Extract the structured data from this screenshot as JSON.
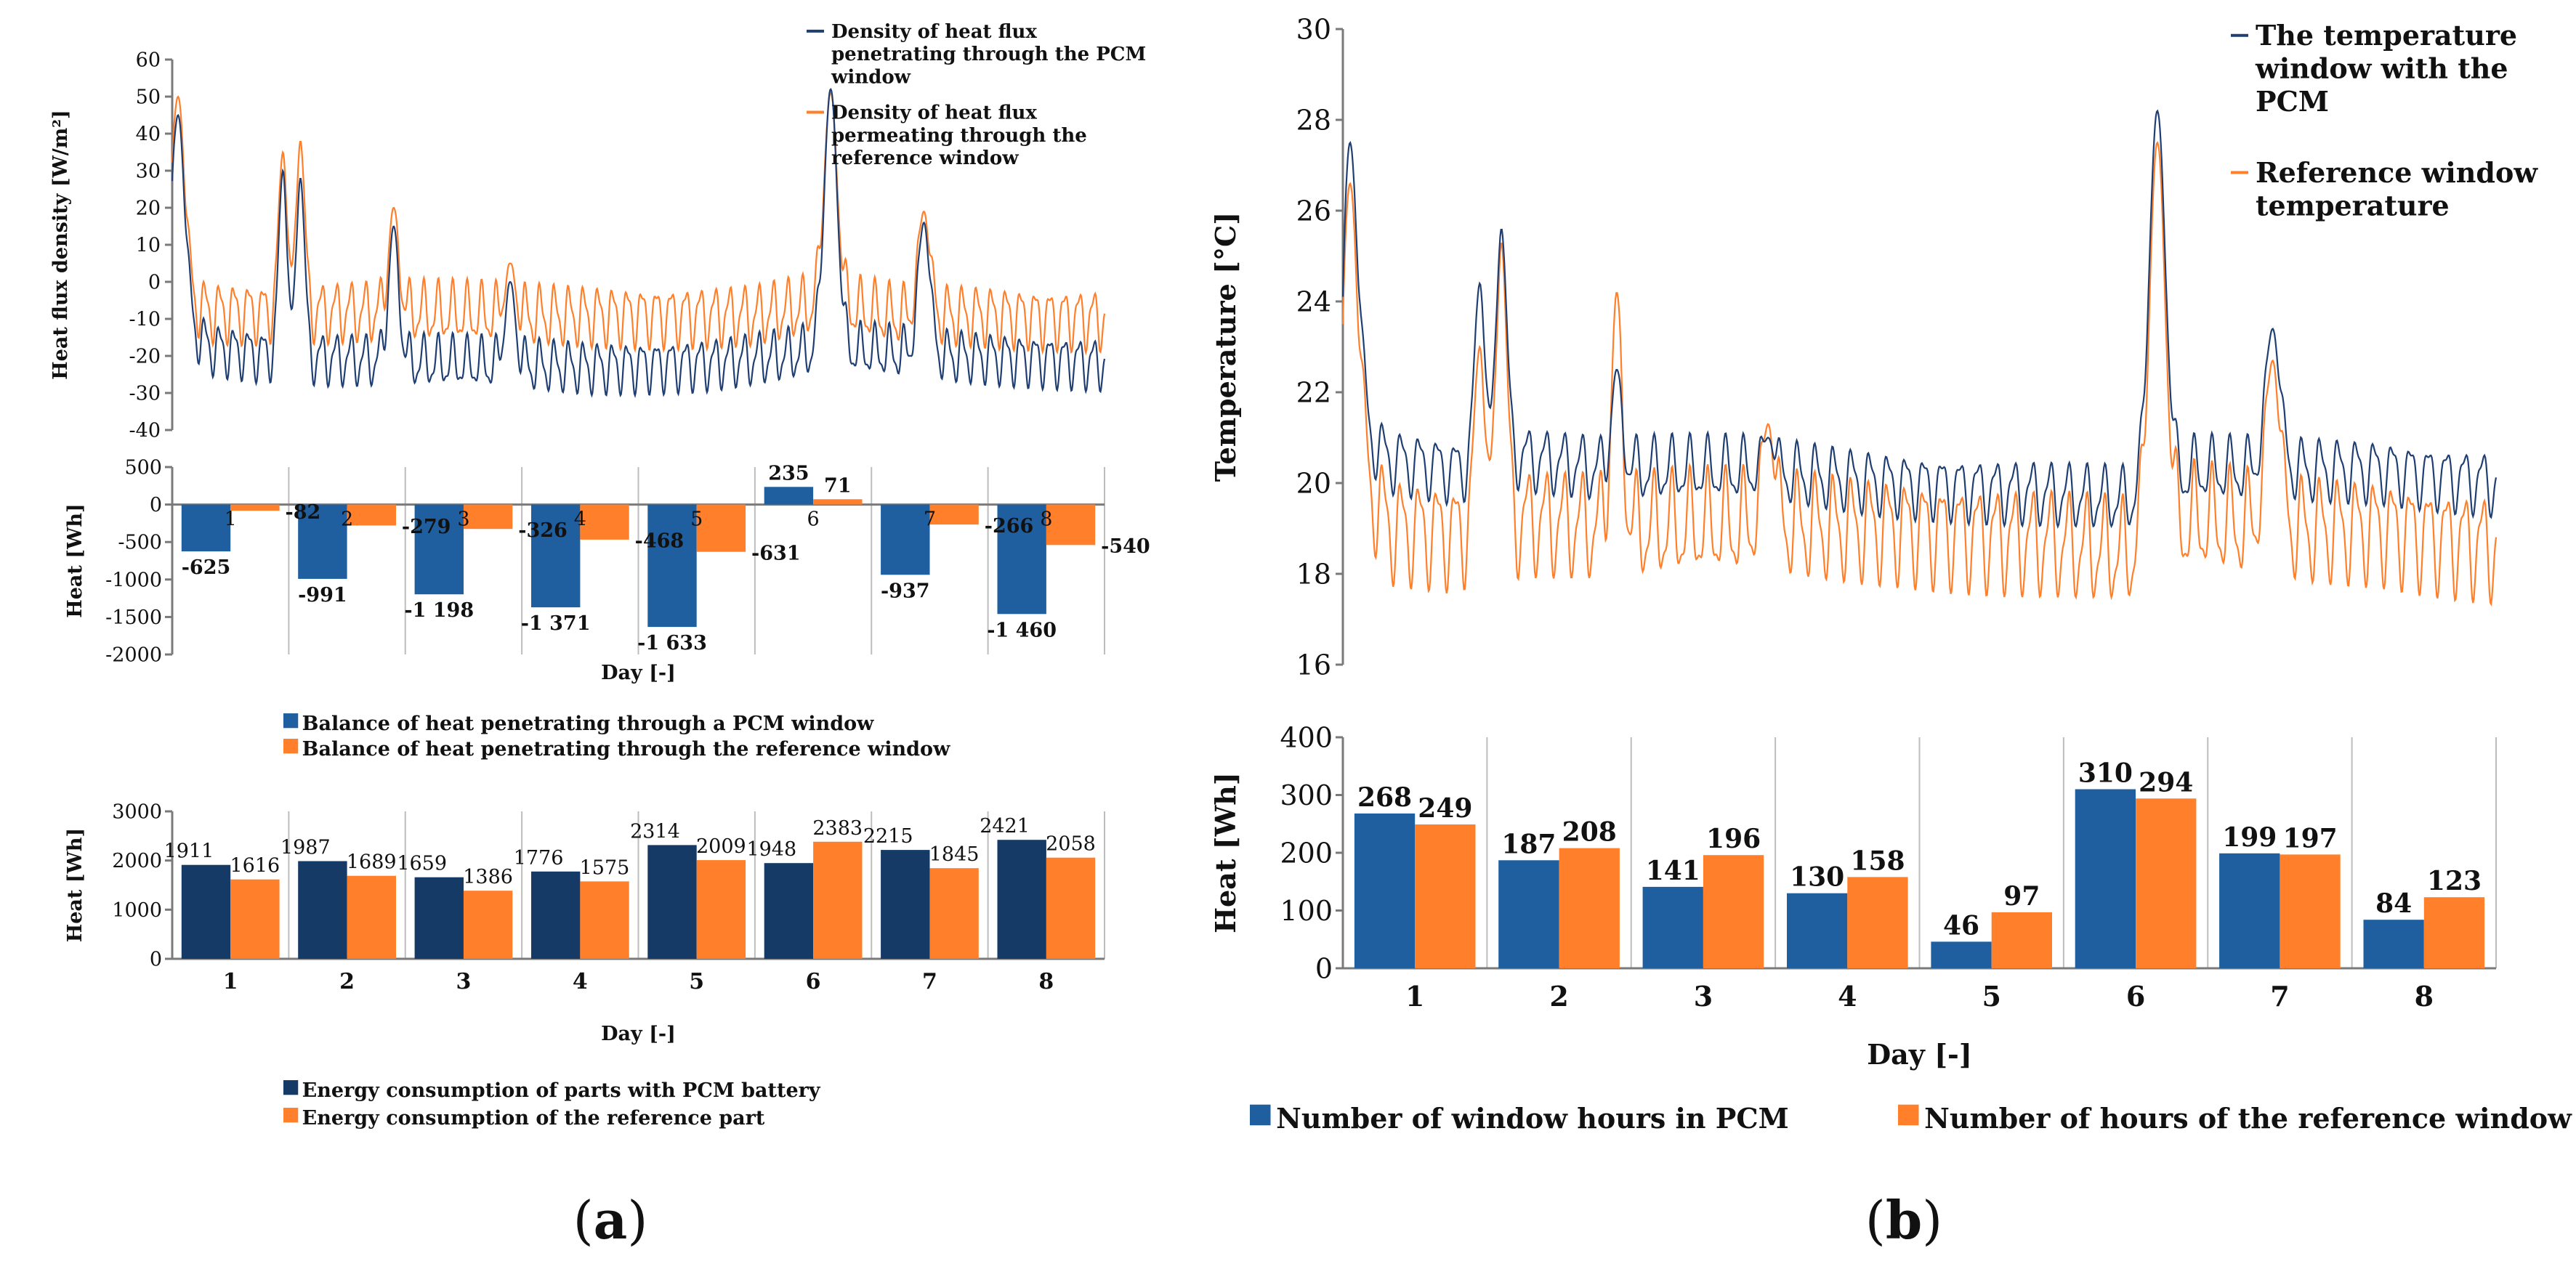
{
  "panels": [
    {
      "id": "a",
      "label_open": "(",
      "label": "a",
      "label_close": ")"
    },
    {
      "id": "b",
      "label_open": "(",
      "label": "b",
      "label_close": ")"
    }
  ],
  "colors": {
    "pcm": "#1f3f73",
    "ref": "#ff7f2a",
    "grid": "#bdbdbd",
    "axis": "#7a7a7a"
  },
  "chart_data": [
    {
      "id": "a_flux",
      "type": "line",
      "ylabel": "Heat flux density  [W/m²]",
      "ylim": [
        -40,
        60
      ],
      "yticks": [
        60,
        50,
        40,
        30,
        20,
        10,
        0,
        -10,
        -20,
        -30,
        -40
      ],
      "xlim": [
        0,
        8
      ],
      "grid": false,
      "legend_position": "top-right",
      "series": [
        {
          "name": "Density of heat flux penetrating through the PCM window",
          "color": "#1f3f73",
          "base": [
            [
              0,
              -10
            ],
            [
              0.35,
              -18
            ],
            [
              0.9,
              -20
            ],
            [
              1.6,
              -21
            ],
            [
              2.6,
              -22
            ],
            [
              3.6,
              -23
            ],
            [
              4.6,
              -22
            ],
            [
              5.2,
              -20
            ],
            [
              5.65,
              -18
            ],
            [
              6.2,
              -19
            ],
            [
              6.8,
              -20
            ],
            [
              7.5,
              -21
            ],
            [
              8,
              -22
            ]
          ],
          "oscillation_amplitude": 6,
          "peaks": [
            [
              0.05,
              45,
              0.08
            ],
            [
              0.95,
              30,
              0.05
            ],
            [
              1.1,
              28,
              0.05
            ],
            [
              1.9,
              15,
              0.06
            ],
            [
              2.9,
              0,
              0.06
            ],
            [
              5.65,
              52,
              0.08
            ],
            [
              6.45,
              16,
              0.07
            ]
          ]
        },
        {
          "name": "Density of heat flux permeating through the reference window",
          "color": "#ff7f2a",
          "base": [
            [
              0,
              -5
            ],
            [
              0.35,
              -8
            ],
            [
              1,
              -8
            ],
            [
              2,
              -8
            ],
            [
              3,
              -9
            ],
            [
              4,
              -9
            ],
            [
              5,
              -9
            ],
            [
              5.4,
              -7
            ],
            [
              5.65,
              -6
            ],
            [
              6.2,
              -9
            ],
            [
              7,
              -9
            ],
            [
              8,
              -10
            ]
          ],
          "oscillation_amplitude": 7,
          "peaks": [
            [
              0.05,
              50,
              0.08
            ],
            [
              0.95,
              35,
              0.05
            ],
            [
              1.1,
              38,
              0.05
            ],
            [
              1.9,
              20,
              0.06
            ],
            [
              2.9,
              5,
              0.06
            ],
            [
              5.65,
              51,
              0.08
            ],
            [
              6.45,
              19,
              0.07
            ]
          ]
        }
      ]
    },
    {
      "id": "a_balance",
      "type": "bar",
      "xlabel": "Day [-]",
      "ylabel": "Heat  [Wh]",
      "ylim": [
        -2000,
        500
      ],
      "yticks": [
        500,
        0,
        -500,
        -1000,
        -1500,
        -2000
      ],
      "categories": [
        "1",
        "2",
        "3",
        "4",
        "5",
        "6",
        "7",
        "8"
      ],
      "grid": true,
      "legend_position": "bottom",
      "series": [
        {
          "name": "Balance of heat penetrating through a PCM window",
          "color": "#1f5f9f",
          "values": [
            -625,
            -991,
            -1198,
            -1371,
            -1633,
            235,
            -937,
            -1460
          ],
          "labels": [
            "-625",
            "-991",
            "-1 198",
            "-1 371",
            "-1 633",
            "235",
            "-937",
            "-1 460"
          ]
        },
        {
          "name": "Balance of heat penetrating through the reference window",
          "color": "#ff7f2a",
          "values": [
            -82,
            -279,
            -326,
            -468,
            -631,
            71,
            -266,
            -540
          ],
          "labels": [
            "-82",
            "-279",
            "-326",
            "-468",
            "-631",
            "71",
            "-266",
            "-540"
          ]
        }
      ]
    },
    {
      "id": "a_energy",
      "type": "bar",
      "xlabel": "Day [-]",
      "ylabel": "Heat  [Wh]",
      "ylim": [
        0,
        3000
      ],
      "yticks": [
        3000,
        2000,
        1000,
        0
      ],
      "categories": [
        "1",
        "2",
        "3",
        "4",
        "5",
        "6",
        "7",
        "8"
      ],
      "grid": true,
      "legend_position": "bottom",
      "series": [
        {
          "name": "Energy consumption of parts with PCM battery",
          "color": "#163a66",
          "values": [
            1911,
            1987,
            1659,
            1776,
            2314,
            1948,
            2215,
            2421
          ]
        },
        {
          "name": "Energy consumption of the reference part",
          "color": "#ff7f2a",
          "values": [
            1616,
            1689,
            1386,
            1575,
            2009,
            2383,
            1845,
            2058
          ]
        }
      ]
    },
    {
      "id": "b_temperature",
      "type": "line",
      "ylabel": "Temperature [°C]",
      "ylim": [
        16,
        30
      ],
      "yticks": [
        30,
        28,
        26,
        24,
        22,
        20,
        18,
        16
      ],
      "xlim": [
        0,
        8
      ],
      "grid": false,
      "legend_position": "top-right",
      "series": [
        {
          "name": "The temperature window with the PCM",
          "color": "#1f3f73",
          "base": [
            [
              0,
              17
            ],
            [
              0.12,
              21
            ],
            [
              0.35,
              20.5
            ],
            [
              0.8,
              20.3
            ],
            [
              1.2,
              20.6
            ],
            [
              1.8,
              20.3
            ],
            [
              2.8,
              20.3
            ],
            [
              3.8,
              20
            ],
            [
              4.8,
              19.8
            ],
            [
              5.55,
              19.6
            ],
            [
              5.9,
              20.3
            ],
            [
              6.5,
              20.3
            ],
            [
              7.2,
              20.3
            ],
            [
              8,
              20
            ]
          ],
          "oscillation_amplitude": 0.6,
          "peaks": [
            [
              0.05,
              27.5,
              0.08
            ],
            [
              0.95,
              24.4,
              0.05
            ],
            [
              1.1,
              25.6,
              0.05
            ],
            [
              1.9,
              22.5,
              0.05
            ],
            [
              2.95,
              21,
              0.06
            ],
            [
              5.65,
              28.2,
              0.08
            ],
            [
              6.45,
              23.4,
              0.07
            ]
          ]
        },
        {
          "name": "Reference window temperature",
          "color": "#ff7f2a",
          "base": [
            [
              0,
              17
            ],
            [
              0.12,
              20
            ],
            [
              0.35,
              19
            ],
            [
              0.8,
              18.9
            ],
            [
              1.3,
              19.2
            ],
            [
              1.9,
              19
            ],
            [
              2.9,
              19.1
            ],
            [
              3.9,
              19
            ],
            [
              4.9,
              18.7
            ],
            [
              5.55,
              18.4
            ],
            [
              5.9,
              19.2
            ],
            [
              6.5,
              19
            ],
            [
              7.2,
              19
            ],
            [
              8,
              18.6
            ]
          ],
          "oscillation_amplitude": 1.0,
          "peaks": [
            [
              0.05,
              26.6,
              0.08
            ],
            [
              0.95,
              23,
              0.05
            ],
            [
              1.1,
              25.3,
              0.05
            ],
            [
              1.9,
              24.2,
              0.05
            ],
            [
              2.95,
              21.3,
              0.06
            ],
            [
              5.65,
              27.5,
              0.08
            ],
            [
              6.45,
              22.7,
              0.07
            ]
          ]
        }
      ]
    },
    {
      "id": "b_hours",
      "type": "bar",
      "xlabel": "Day [-]",
      "ylabel": "Heat [Wh]",
      "ylim": [
        0,
        400
      ],
      "yticks": [
        400,
        300,
        200,
        100,
        0
      ],
      "categories": [
        "1",
        "2",
        "3",
        "4",
        "5",
        "6",
        "7",
        "8"
      ],
      "grid": true,
      "legend_position": "bottom",
      "series": [
        {
          "name": "Number of window hours in PCM",
          "color": "#1f5f9f",
          "values": [
            268,
            187,
            141,
            130,
            46,
            310,
            199,
            84
          ]
        },
        {
          "name": "Number of hours of the reference window",
          "color": "#ff7f2a",
          "values": [
            249,
            208,
            196,
            158,
            97,
            294,
            197,
            123
          ]
        }
      ]
    }
  ]
}
